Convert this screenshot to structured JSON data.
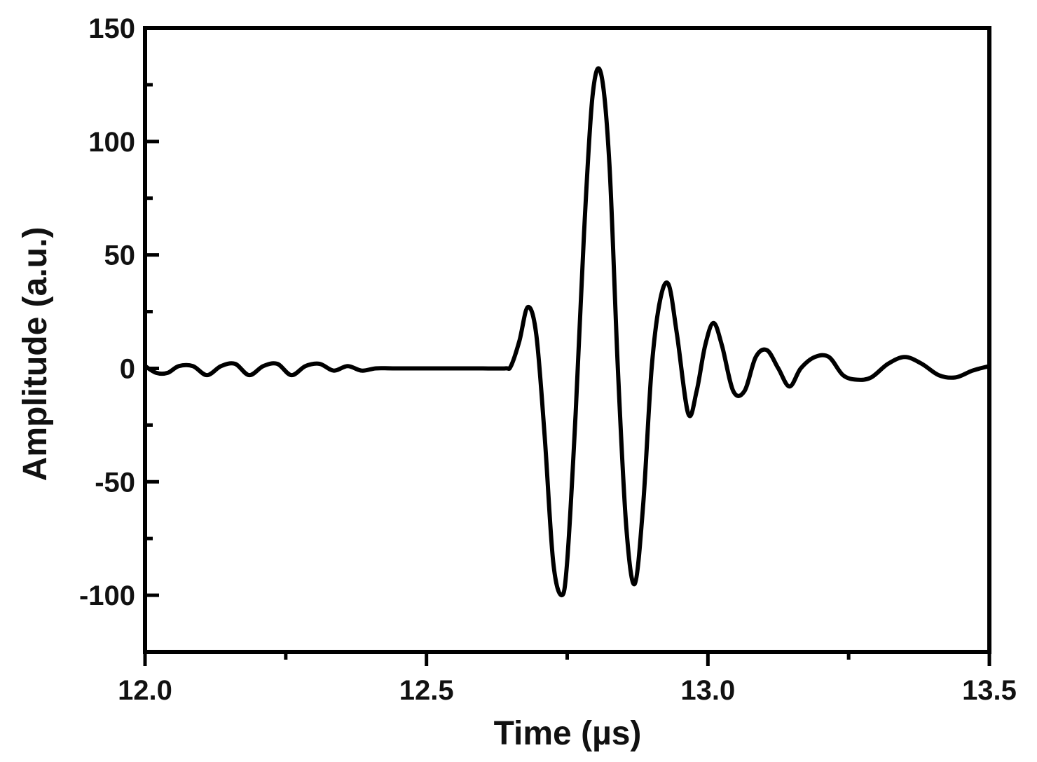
{
  "chart_data": {
    "type": "line",
    "title": "",
    "xlabel": "Time (µs)",
    "ylabel": "Amplitude (a.u.)",
    "xlim": [
      12.0,
      13.5
    ],
    "ylim": [
      -125,
      150
    ],
    "xticks": [
      12.0,
      12.5,
      13.0,
      13.5
    ],
    "xtick_labels": [
      "12.0",
      "12.5",
      "13.0",
      "13.5"
    ],
    "xminor_ticks": [
      12.25,
      12.75,
      13.25
    ],
    "yticks": [
      150,
      100,
      50,
      0,
      -50,
      -100
    ],
    "ytick_labels": [
      "150",
      "100",
      "50",
      "0",
      "-50",
      "-100"
    ],
    "yminor_ticks": [
      125,
      75,
      25,
      -25,
      -75
    ],
    "grid": false,
    "legend": "none",
    "line_color": "#000000",
    "series": [
      {
        "x": [
          12.0,
          12.02,
          12.04,
          12.06,
          12.085,
          12.11,
          12.135,
          12.16,
          12.185,
          12.21,
          12.235,
          12.26,
          12.285,
          12.31,
          12.335,
          12.36,
          12.385,
          12.41,
          12.44,
          12.5,
          12.56,
          12.6,
          12.64,
          12.65,
          12.665,
          12.68,
          12.695,
          12.71,
          12.725,
          12.74,
          12.75,
          12.765,
          12.78,
          12.795,
          12.81,
          12.825,
          12.84,
          12.855,
          12.87,
          12.885,
          12.9,
          12.915,
          12.93,
          12.945,
          12.965,
          12.98,
          12.995,
          13.01,
          13.025,
          13.045,
          13.065,
          13.085,
          13.105,
          13.125,
          13.145,
          13.165,
          13.19,
          13.215,
          13.24,
          13.265,
          13.29,
          13.32,
          13.35,
          13.38,
          13.41,
          13.44,
          13.47,
          13.5
        ],
        "y": [
          1,
          -2,
          -2,
          1,
          1,
          -3,
          1,
          2,
          -3,
          1,
          2,
          -3,
          1,
          2,
          -1,
          1,
          -1,
          0,
          0,
          0,
          0,
          0,
          0,
          1,
          12,
          27,
          15,
          -30,
          -85,
          -100,
          -85,
          -20,
          60,
          120,
          130,
          90,
          0,
          -70,
          -95,
          -60,
          0,
          30,
          37,
          15,
          -20,
          -10,
          10,
          20,
          10,
          -10,
          -10,
          5,
          8,
          0,
          -8,
          0,
          5,
          5,
          -3,
          -5,
          -4,
          2,
          5,
          2,
          -3,
          -4,
          -1,
          1
        ]
      }
    ]
  }
}
